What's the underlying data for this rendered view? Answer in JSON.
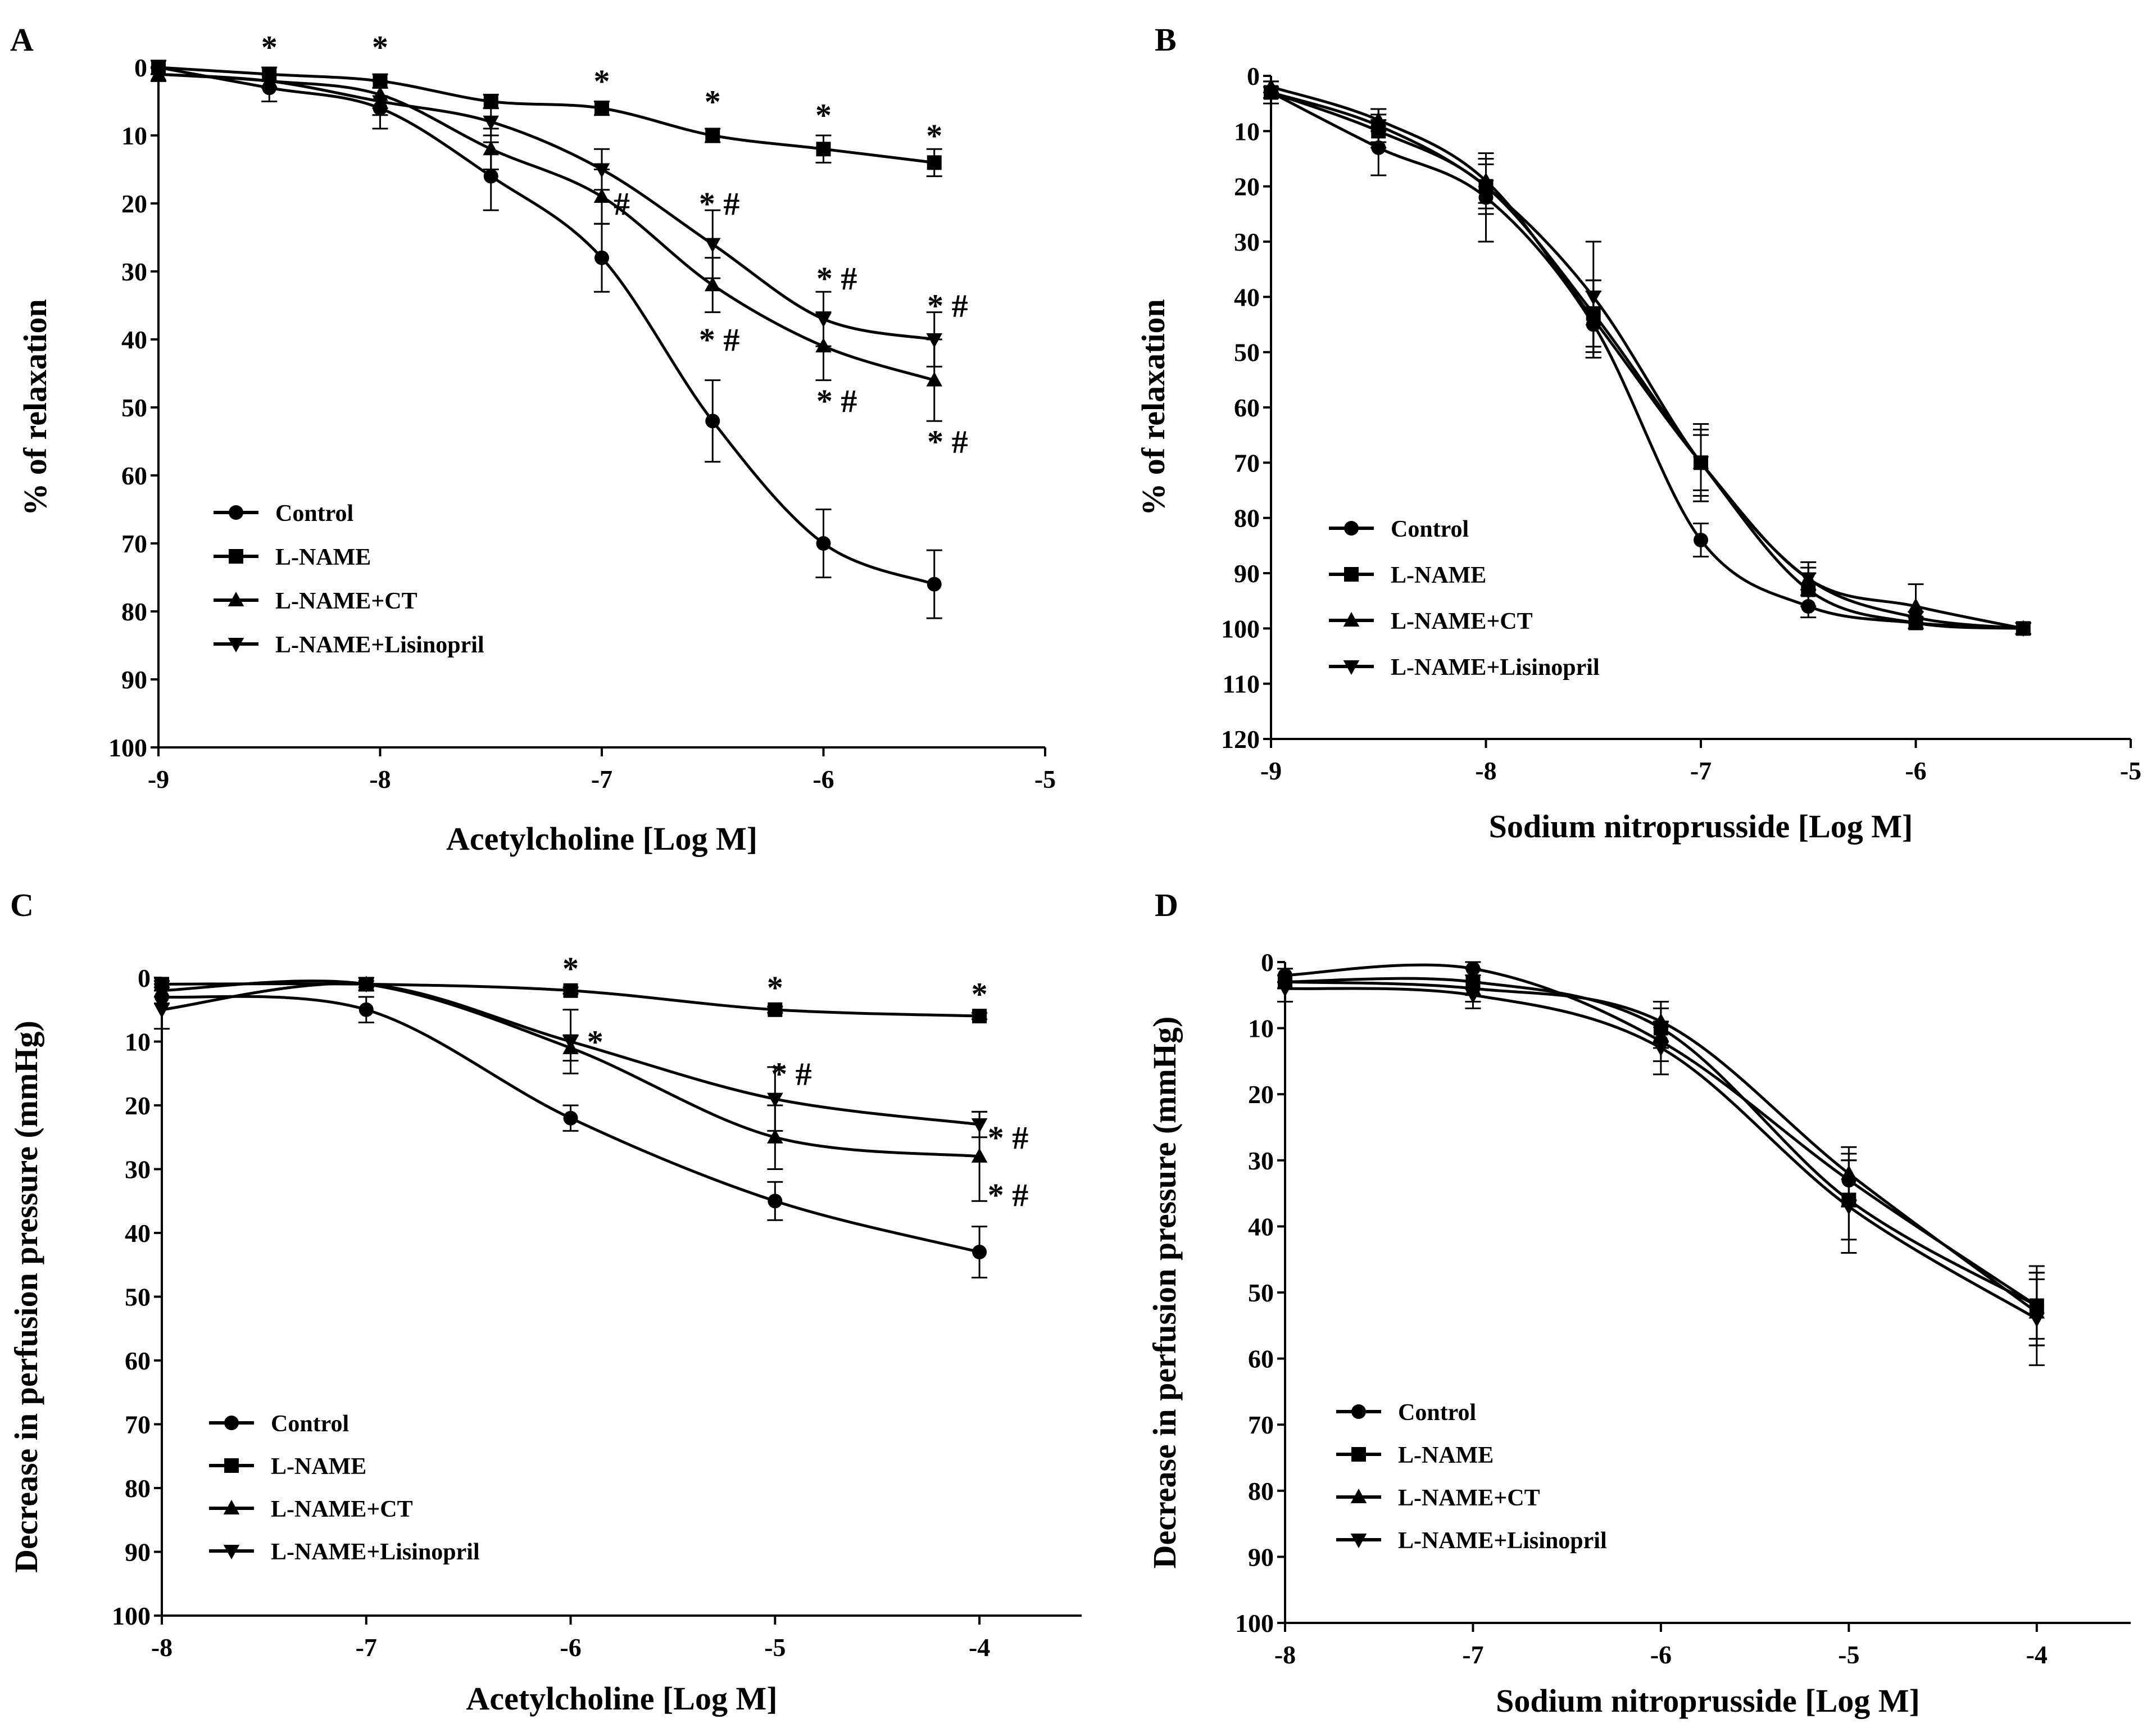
{
  "chart_data": [
    {
      "panel": "A",
      "type": "line",
      "markers": "error-bar-means-with-fitted-curves",
      "xlabel": "Acetylcholine [Log M]",
      "ylabel": "% of relaxation",
      "xlim": [
        -9,
        -5
      ],
      "ylim": [
        0,
        100
      ],
      "y_inverted": true,
      "xticks": [
        -9,
        -8,
        -7,
        -6,
        -5
      ],
      "yticks": [
        0,
        10,
        20,
        30,
        40,
        50,
        60,
        70,
        80,
        90,
        100
      ],
      "x": [
        -9,
        -8.5,
        -8,
        -7.5,
        -7,
        -6.5,
        -6,
        -5.5
      ],
      "series": [
        {
          "name": "Control",
          "marker": "circle",
          "values": [
            0,
            3,
            6,
            16,
            28,
            52,
            70,
            76
          ],
          "errors": [
            1,
            2,
            3,
            5,
            5,
            6,
            5,
            5
          ]
        },
        {
          "name": "L-NAME",
          "marker": "square",
          "values": [
            0,
            1,
            2,
            5,
            6,
            10,
            12,
            14
          ],
          "errors": [
            1,
            1,
            1,
            1,
            1,
            1,
            2,
            2
          ]
        },
        {
          "name": "L-NAME+CT",
          "marker": "triangle-up",
          "values": [
            1,
            2,
            4,
            12,
            19,
            32,
            41,
            46
          ],
          "errors": [
            1,
            1,
            2,
            3,
            4,
            4,
            5,
            6
          ]
        },
        {
          "name": "L-NAME+Lisinopril",
          "marker": "triangle-down",
          "values": [
            1,
            2,
            5,
            8,
            15,
            26,
            37,
            40
          ],
          "errors": [
            1,
            1,
            2,
            2,
            3,
            5,
            4,
            4
          ]
        }
      ],
      "annotations": [
        {
          "text": "*",
          "x": -8.5,
          "y": -3
        },
        {
          "text": "*",
          "x": -8,
          "y": -3
        },
        {
          "text": "*",
          "x": -7,
          "y": 2
        },
        {
          "text": "*",
          "x": -6.5,
          "y": 5
        },
        {
          "text": "*",
          "x": -6,
          "y": 7
        },
        {
          "text": "*",
          "x": -5.5,
          "y": 10
        },
        {
          "text": "#",
          "x": -6.91,
          "y": 20
        },
        {
          "text": "* #",
          "x": -6.47,
          "y": 20
        },
        {
          "text": "* #",
          "x": -6.47,
          "y": 40
        },
        {
          "text": "* #",
          "x": -5.94,
          "y": 31
        },
        {
          "text": "* #",
          "x": -5.94,
          "y": 49
        },
        {
          "text": "* #",
          "x": -5.44,
          "y": 35
        },
        {
          "text": "* #",
          "x": -5.44,
          "y": 55
        }
      ]
    },
    {
      "panel": "B",
      "type": "line",
      "markers": "error-bar-means-with-fitted-curves",
      "xlabel": "Sodium nitroprusside [Log M]",
      "ylabel": "% of relaxation",
      "xlim": [
        -9,
        -5
      ],
      "ylim": [
        0,
        120
      ],
      "y_inverted": true,
      "xticks": [
        -9,
        -8,
        -7,
        -6,
        -5
      ],
      "yticks": [
        0,
        10,
        20,
        30,
        40,
        50,
        60,
        70,
        80,
        90,
        100,
        110,
        120
      ],
      "x": [
        -9,
        -8.5,
        -8,
        -7.5,
        -7,
        -6.5,
        -6,
        -5.5
      ],
      "series": [
        {
          "name": "Control",
          "marker": "circle",
          "values": [
            3,
            13,
            22,
            45,
            84,
            96,
            99,
            100
          ],
          "errors": [
            2,
            5,
            8,
            6,
            3,
            2,
            1,
            1
          ]
        },
        {
          "name": "L-NAME",
          "marker": "square",
          "values": [
            3,
            10,
            20,
            43,
            70,
            93,
            99,
            100
          ],
          "errors": [
            1,
            3,
            4,
            6,
            6,
            3,
            1,
            1
          ]
        },
        {
          "name": "L-NAME+CT",
          "marker": "triangle-up",
          "values": [
            2,
            8,
            19,
            44,
            70,
            91,
            96,
            100
          ],
          "errors": [
            1,
            2,
            4,
            7,
            7,
            3,
            4,
            1
          ]
        },
        {
          "name": "L-NAME+Lisinopril",
          "marker": "triangle-down",
          "values": [
            3,
            9,
            20,
            40,
            70,
            91,
            98,
            100
          ],
          "errors": [
            1,
            3,
            5,
            10,
            5,
            2,
            1,
            1
          ]
        }
      ]
    },
    {
      "panel": "C",
      "type": "line",
      "markers": "error-bar-means-with-fitted-curves",
      "xlabel": "Acetylcholine [Log M]",
      "ylabel": "Decrease in perfusion pressure (mmHg)",
      "xlim": [
        -8,
        -3.5
      ],
      "ylim": [
        0,
        100
      ],
      "y_inverted": true,
      "xticks": [
        -8,
        -7,
        -6,
        -5,
        -4
      ],
      "yticks": [
        0,
        10,
        20,
        30,
        40,
        50,
        60,
        70,
        80,
        90,
        100
      ],
      "x": [
        -8,
        -7,
        -6,
        -5,
        -4
      ],
      "series": [
        {
          "name": "Control",
          "marker": "circle",
          "values": [
            3,
            5,
            22,
            35,
            43
          ],
          "errors": [
            1,
            2,
            2,
            3,
            4
          ]
        },
        {
          "name": "L-NAME",
          "marker": "square",
          "values": [
            1,
            1,
            2,
            5,
            6
          ],
          "errors": [
            0.5,
            0.5,
            0.5,
            0.5,
            0.5
          ]
        },
        {
          "name": "L-NAME+CT",
          "marker": "triangle-up",
          "values": [
            2,
            1,
            11,
            25,
            28
          ],
          "errors": [
            1,
            1,
            2,
            5,
            7
          ]
        },
        {
          "name": "L-NAME+Lisinopril",
          "marker": "triangle-down",
          "values": [
            5,
            1,
            10,
            19,
            23
          ],
          "errors": [
            3,
            1,
            5,
            5,
            2
          ]
        }
      ],
      "annotations": [
        {
          "text": "*",
          "x": -6,
          "y": -1.5
        },
        {
          "text": "*",
          "x": -5,
          "y": 1.5
        },
        {
          "text": "*",
          "x": -4,
          "y": 2.5
        },
        {
          "text": "*",
          "x": -5.88,
          "y": 10
        },
        {
          "text": "* #",
          "x": -4.92,
          "y": 15
        },
        {
          "text": "* #",
          "x": -3.86,
          "y": 25
        },
        {
          "text": "* #",
          "x": -3.86,
          "y": 34
        }
      ]
    },
    {
      "panel": "D",
      "type": "line",
      "markers": "error-bar-means-with-fitted-curves",
      "xlabel": "Sodium nitroprusside [Log M]",
      "ylabel": "Decrease in perfusion pressure (mmHg)",
      "xlim": [
        -8,
        -3.5
      ],
      "ylim": [
        0,
        100
      ],
      "y_inverted": true,
      "xticks": [
        -8,
        -7,
        -6,
        -5,
        -4
      ],
      "yticks": [
        0,
        10,
        20,
        30,
        40,
        50,
        60,
        70,
        80,
        90,
        100
      ],
      "x": [
        -8,
        -7,
        -6,
        -5,
        -4
      ],
      "series": [
        {
          "name": "Control",
          "marker": "circle",
          "values": [
            2,
            1,
            12,
            33,
            52
          ],
          "errors": [
            1,
            1,
            3,
            4,
            5
          ]
        },
        {
          "name": "L-NAME",
          "marker": "square",
          "values": [
            3,
            3,
            10,
            36,
            52
          ],
          "errors": [
            1,
            2,
            3,
            6,
            6
          ]
        },
        {
          "name": "L-NAME+CT",
          "marker": "triangle-up",
          "values": [
            3,
            4,
            9,
            32,
            53
          ],
          "errors": [
            1,
            2,
            3,
            4,
            5
          ]
        },
        {
          "name": "L-NAME+Lisinopril",
          "marker": "triangle-down",
          "values": [
            4,
            5,
            13,
            37,
            54
          ],
          "errors": [
            2,
            2,
            4,
            7,
            7
          ]
        }
      ]
    }
  ]
}
